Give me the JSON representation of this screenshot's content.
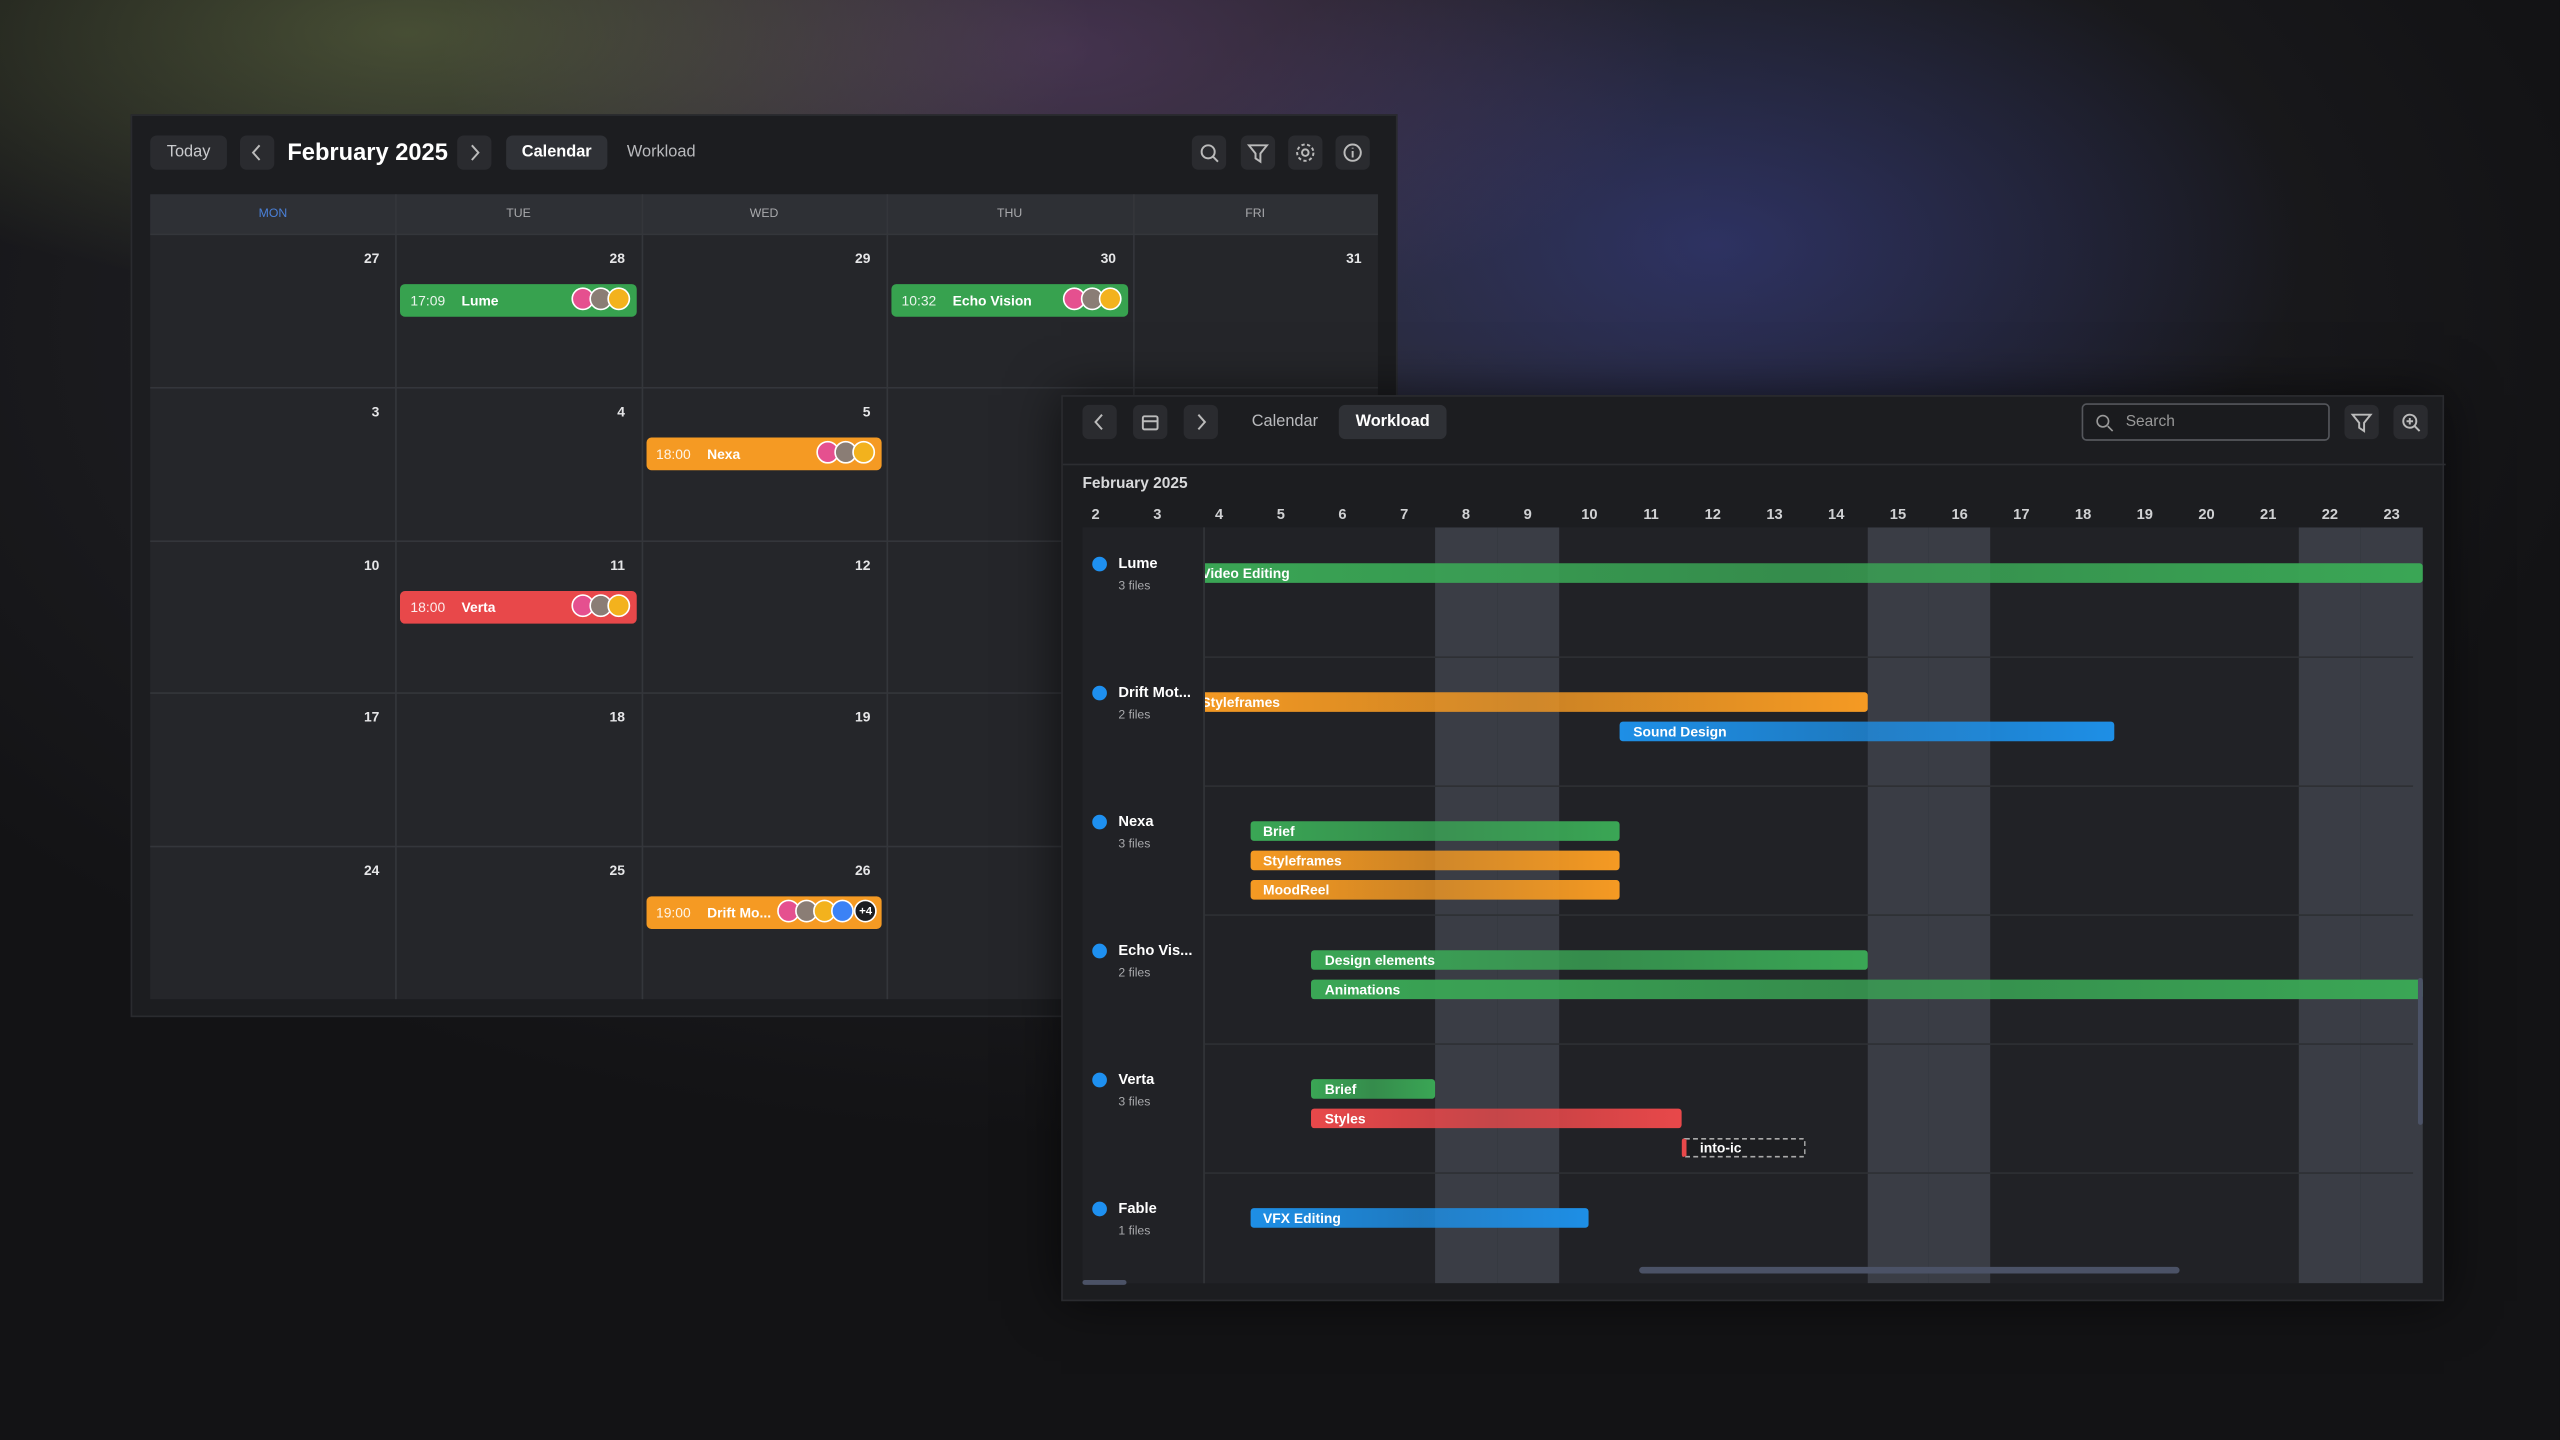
{
  "calendar": {
    "today": "Today",
    "title": "February 2025",
    "tabs": [
      "Calendar",
      "Workload"
    ],
    "active_tab": 0,
    "weekdays": [
      "MON",
      "TUE",
      "WED",
      "THU",
      "FRI"
    ],
    "weeks": [
      [
        {
          "date": 27
        },
        {
          "date": 28,
          "event": {
            "time": "17:09",
            "title": "Lume",
            "color": "#37a24f"
          }
        },
        {
          "date": 29
        },
        {
          "date": 30,
          "event": {
            "time": "10:32",
            "title": "Echo Vision",
            "color": "#37a24f"
          }
        },
        {
          "date": 31
        }
      ],
      [
        {
          "date": 3
        },
        {
          "date": 4
        },
        {
          "date": 5,
          "event": {
            "time": "18:00",
            "title": "Nexa",
            "color": "#f59a23"
          }
        }
      ],
      [
        {
          "date": 10
        },
        {
          "date": 11,
          "event": {
            "time": "18:00",
            "title": "Verta",
            "color": "#e8484a"
          }
        },
        {
          "date": 12
        }
      ],
      [
        {
          "date": 17
        },
        {
          "date": 18
        },
        {
          "date": 19
        }
      ],
      [
        {
          "date": 24
        },
        {
          "date": 25
        },
        {
          "date": 26,
          "event": {
            "time": "19:00",
            "title": "Drift Mo...",
            "color": "#f59a23",
            "more": "+4"
          }
        }
      ]
    ]
  },
  "workload": {
    "tabs": [
      "Calendar",
      "Workload"
    ],
    "active_tab": 1,
    "search_placeholder": "Search",
    "month": "February 2025",
    "days": [
      2,
      3,
      4,
      5,
      6,
      7,
      8,
      9,
      10,
      11,
      12,
      13,
      14,
      15,
      16,
      17,
      18,
      19,
      20,
      21,
      22,
      23
    ],
    "highlighted_days": [
      8,
      9,
      15,
      16,
      22,
      23
    ],
    "projects": [
      {
        "name": "Lume",
        "files": "3 files",
        "tasks": [
          {
            "label": "Video Editing",
            "color": "#3aa655",
            "start": 4,
            "end": 24
          }
        ]
      },
      {
        "name": "Drift Mot...",
        "files": "2 files",
        "tasks": [
          {
            "label": "Styleframes",
            "color": "#f59a23",
            "start": 4,
            "end": 15
          },
          {
            "label": "Sound Design",
            "color": "#1e8fe6",
            "start": 11,
            "end": 19
          }
        ]
      },
      {
        "name": "Nexa",
        "files": "3 files",
        "tasks": [
          {
            "label": "Brief",
            "color": "#3aa655",
            "start": 5,
            "end": 11
          },
          {
            "label": "Styleframes",
            "color": "#f59a23",
            "start": 5,
            "end": 11
          },
          {
            "label": "MoodReel",
            "color": "#f59a23",
            "start": 5,
            "end": 11
          }
        ]
      },
      {
        "name": "Echo Vis...",
        "files": "2 files",
        "tasks": [
          {
            "label": "Design elements",
            "color": "#3aa655",
            "start": 6,
            "end": 15
          },
          {
            "label": "Animations",
            "color": "#3aa655",
            "start": 6,
            "end": 24
          }
        ]
      },
      {
        "name": "Verta",
        "files": "3 files",
        "tasks": [
          {
            "label": "Brief",
            "color": "#3aa655",
            "start": 6,
            "end": 8
          },
          {
            "label": "Styles",
            "color": "#e8484a",
            "start": 6,
            "end": 12
          },
          {
            "label": "into-ic",
            "color": "#e8484a",
            "start": 12,
            "end": 14,
            "dashed": true
          }
        ]
      },
      {
        "name": "Fable",
        "files": "1 files",
        "tasks": [
          {
            "label": "VFX Editing",
            "color": "#1e8fe6",
            "start": 5,
            "end": 10.5
          }
        ]
      }
    ]
  }
}
